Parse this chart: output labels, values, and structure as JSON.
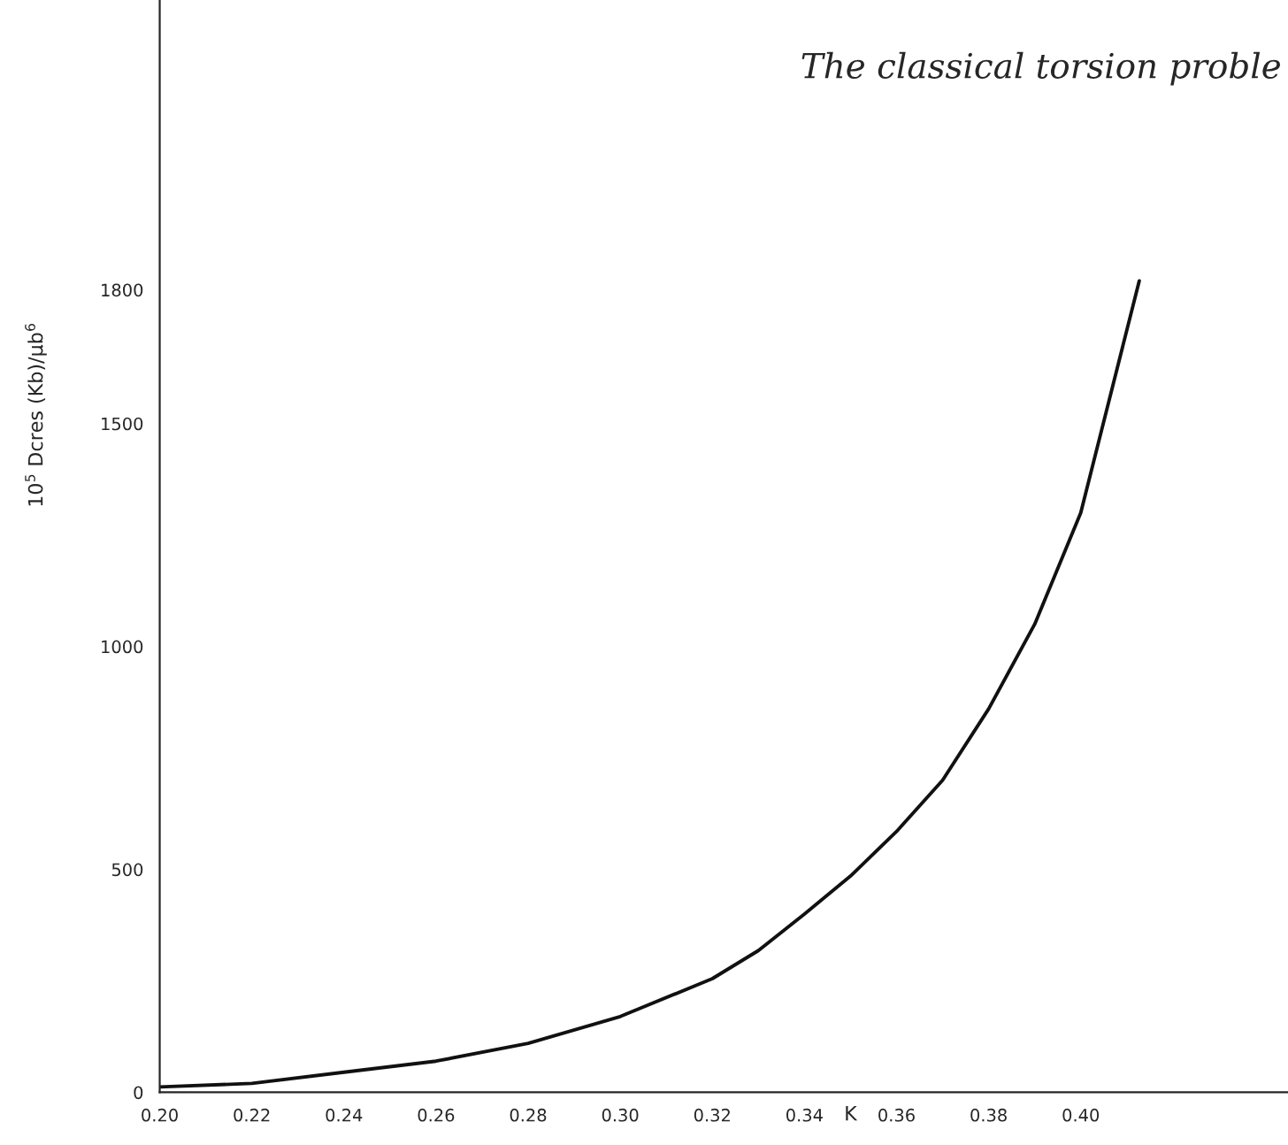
{
  "chart_data": {
    "type": "line",
    "annotations": [
      "The classical torsion proble"
    ],
    "xlabel": "K",
    "ylabel": "10$^{5}$ Dcres (Kb)/μb$^{6}$",
    "x": [
      0.2,
      0.22,
      0.24,
      0.26,
      0.28,
      0.3,
      0.32,
      0.33,
      0.34,
      0.35,
      0.36,
      0.37,
      0.38,
      0.39,
      0.4,
      0.4127
    ],
    "series": [
      {
        "color": "#111111",
        "values": [
          12,
          20,
          45,
          70,
          110,
          170,
          255,
          318,
          400,
          485,
          585,
          700,
          860,
          1050,
          1300,
          1820
        ]
      }
    ],
    "xlim": [
      0.2,
      0.445
    ],
    "ylim": [
      0,
      2450
    ],
    "xticks": [
      {
        "value": 0.2,
        "label": "0.20"
      },
      {
        "value": 0.22,
        "label": "0.22"
      },
      {
        "value": 0.24,
        "label": "0.24"
      },
      {
        "value": 0.26,
        "label": "0.26"
      },
      {
        "value": 0.28,
        "label": "0.28"
      },
      {
        "value": 0.3,
        "label": "0.30"
      },
      {
        "value": 0.32,
        "label": "0.32"
      },
      {
        "value": 0.34,
        "label": "0.34"
      },
      {
        "value": 0.36,
        "label": "0.36"
      },
      {
        "value": 0.38,
        "label": "0.38"
      },
      {
        "value": 0.4,
        "label": "0.40"
      }
    ],
    "yticks": [
      0,
      500,
      1000,
      1500,
      1800
    ],
    "grid": false,
    "legend": false,
    "marker": "none",
    "line_style": "solid"
  }
}
